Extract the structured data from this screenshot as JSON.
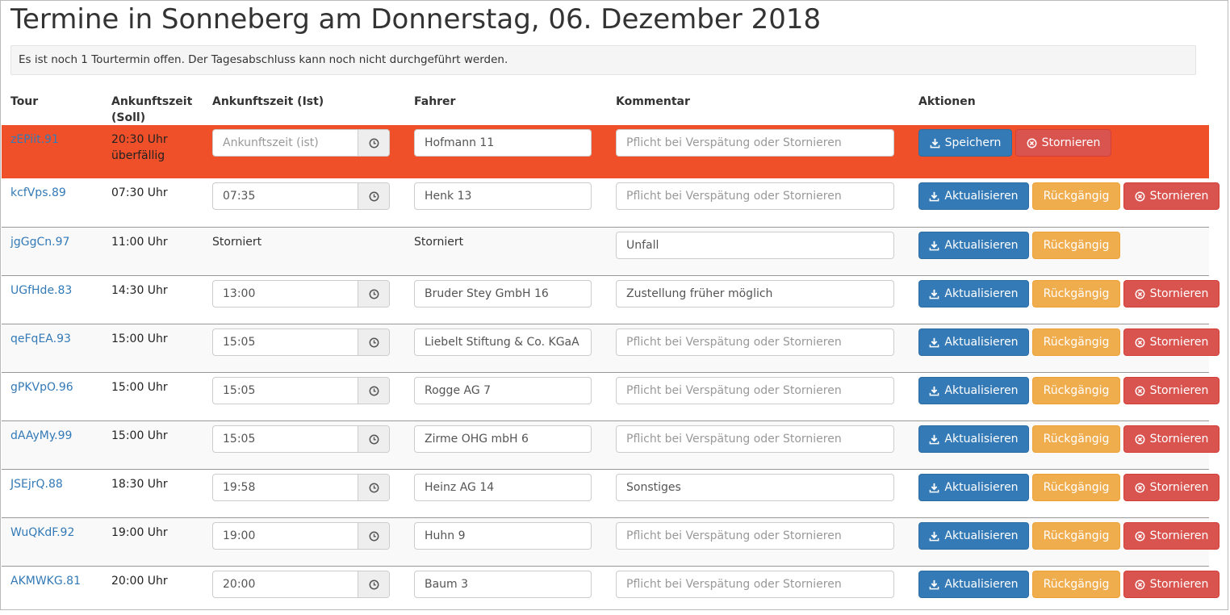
{
  "page": {
    "title": "Termine in Sonneberg am Donnerstag, 06. Dezember 2018",
    "alert": "Es ist noch 1 Tourtermin offen. Der Tagesabschluss kann noch nicht durchgeführt werden."
  },
  "columns": {
    "tour": "Tour",
    "soll_line1": "Ankunftszeit",
    "soll_line2": "(Soll)",
    "ist": "Ankunftszeit (Ist)",
    "fahrer": "Fahrer",
    "kommentar": "Kommentar",
    "aktionen": "Aktionen"
  },
  "placeholders": {
    "ist": "Ankunftszeit (ist)",
    "kommentar": "Pflicht bei Verspätung oder Stornieren"
  },
  "labels": {
    "speichern": "Speichern",
    "aktualisieren": "Aktualisieren",
    "rueckgaengig": "Rückgängig",
    "stornieren": "Stornieren",
    "storniert": "Storniert"
  },
  "rows": [
    {
      "tour": "zEPiit.91",
      "soll": "20:30 Uhr",
      "status": "überfällig",
      "ist": "",
      "fahrer": "Hofmann 11",
      "kommentar": ""
    },
    {
      "tour": "kcfVps.89",
      "soll": "07:30 Uhr",
      "ist": "07:35",
      "fahrer": "Henk 13",
      "kommentar": ""
    },
    {
      "tour": "jgGgCn.97",
      "soll": "11:00 Uhr",
      "ist": "Storniert",
      "fahrer": "Storniert",
      "kommentar": "Unfall"
    },
    {
      "tour": "UGfHde.83",
      "soll": "14:30 Uhr",
      "ist": "13:00",
      "fahrer": "Bruder Stey GmbH 16",
      "kommentar": "Zustellung früher möglich"
    },
    {
      "tour": "qeFqEA.93",
      "soll": "15:00 Uhr",
      "ist": "15:05",
      "fahrer": "Liebelt Stiftung & Co. KGaA",
      "kommentar": ""
    },
    {
      "tour": "gPKVpO.96",
      "soll": "15:00 Uhr",
      "ist": "15:05",
      "fahrer": "Rogge AG 7",
      "kommentar": ""
    },
    {
      "tour": "dAAyMy.99",
      "soll": "15:00 Uhr",
      "ist": "15:05",
      "fahrer": "Zirme OHG mbH 6",
      "kommentar": ""
    },
    {
      "tour": "JSEjrQ.88",
      "soll": "18:30 Uhr",
      "ist": "19:58",
      "fahrer": "Heinz AG 14",
      "kommentar": "Sonstiges"
    },
    {
      "tour": "WuQKdF.92",
      "soll": "19:00 Uhr",
      "ist": "19:00",
      "fahrer": "Huhn 9",
      "kommentar": ""
    },
    {
      "tour": "AKMWKG.81",
      "soll": "20:00 Uhr",
      "ist": "20:00",
      "fahrer": "Baum 3",
      "kommentar": ""
    }
  ],
  "colors": {
    "overdue_row": "#f05029",
    "link": "#337ab7",
    "primary": "#337ab7",
    "warning": "#f0ad4e",
    "danger": "#d9534f"
  },
  "icons": {
    "clock": "clock-icon",
    "download": "download-icon",
    "cancel": "times-circle-icon"
  }
}
